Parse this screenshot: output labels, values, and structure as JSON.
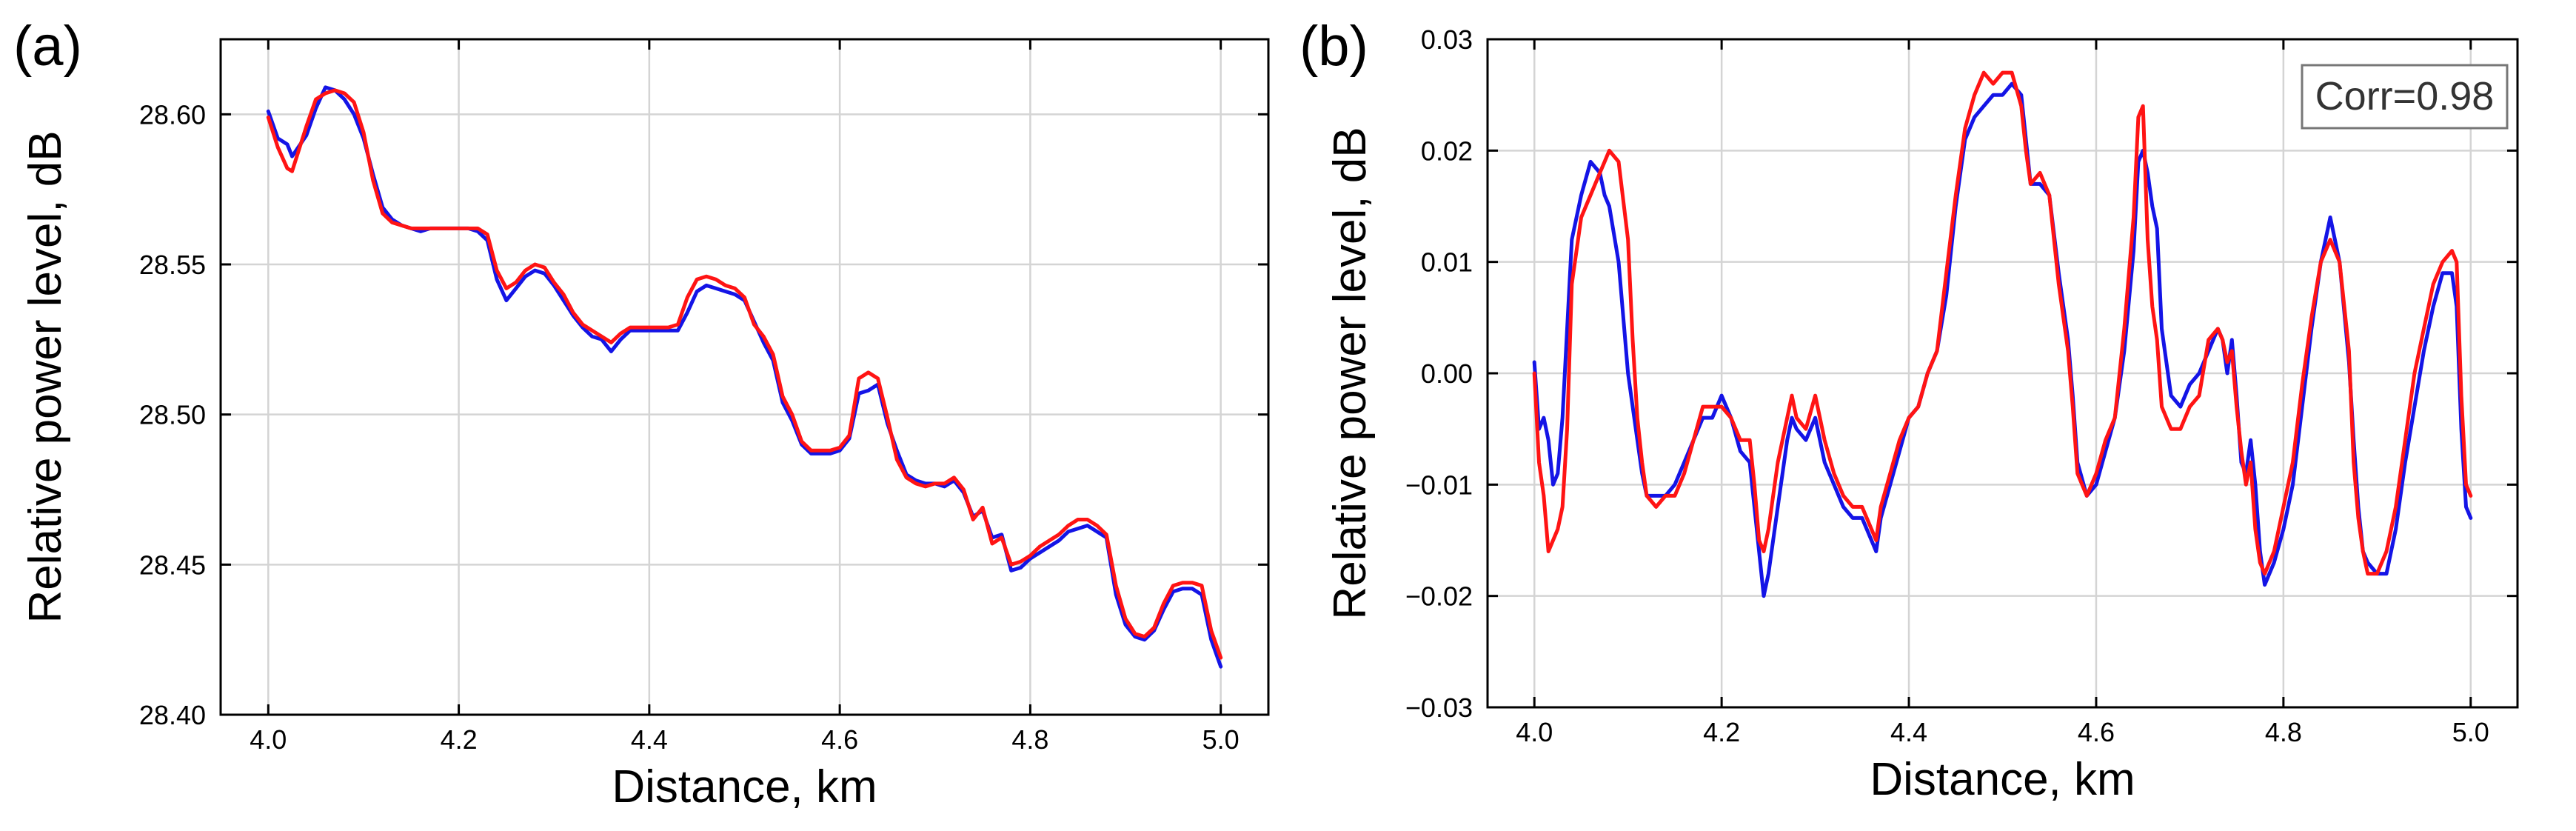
{
  "chart_data": [
    {
      "type": "line",
      "panel_label": "(a)",
      "title": "",
      "xlabel": "Distance, km",
      "ylabel": "Relative power level, dB",
      "xlim": [
        3.95,
        5.05
      ],
      "ylim": [
        28.4,
        28.625
      ],
      "xticks": [
        4.0,
        4.2,
        4.4,
        4.6,
        4.8,
        5.0
      ],
      "xtick_labels": [
        "4.0",
        "4.2",
        "4.4",
        "4.6",
        "4.8",
        "5.0"
      ],
      "yticks": [
        28.4,
        28.45,
        28.5,
        28.55,
        28.6
      ],
      "ytick_labels": [
        "28.40",
        "28.45",
        "28.50",
        "28.55",
        "28.60"
      ],
      "grid": true,
      "annotation": "",
      "series": [
        {
          "name": "blue",
          "color": "#1414e6",
          "x": [
            4.0,
            4.01,
            4.02,
            4.025,
            4.04,
            4.05,
            4.06,
            4.07,
            4.08,
            4.09,
            4.1,
            4.11,
            4.12,
            4.13,
            4.14,
            4.15,
            4.16,
            4.17,
            4.18,
            4.19,
            4.2,
            4.21,
            4.22,
            4.23,
            4.24,
            4.25,
            4.26,
            4.27,
            4.28,
            4.29,
            4.3,
            4.31,
            4.32,
            4.33,
            4.34,
            4.35,
            4.36,
            4.37,
            4.38,
            4.39,
            4.4,
            4.41,
            4.42,
            4.43,
            4.44,
            4.45,
            4.46,
            4.47,
            4.48,
            4.49,
            4.5,
            4.51,
            4.52,
            4.53,
            4.54,
            4.55,
            4.56,
            4.57,
            4.58,
            4.59,
            4.6,
            4.61,
            4.62,
            4.63,
            4.64,
            4.65,
            4.66,
            4.67,
            4.68,
            4.69,
            4.7,
            4.71,
            4.72,
            4.73,
            4.74,
            4.75,
            4.76,
            4.77,
            4.78,
            4.79,
            4.8,
            4.81,
            4.82,
            4.83,
            4.84,
            4.85,
            4.86,
            4.87,
            4.88,
            4.89,
            4.9,
            4.91,
            4.92,
            4.93,
            4.94,
            4.95,
            4.96,
            4.97,
            4.98,
            4.99,
            5.0
          ],
          "y": [
            28.601,
            28.592,
            28.59,
            28.586,
            28.593,
            28.602,
            28.609,
            28.608,
            28.605,
            28.6,
            28.592,
            28.58,
            28.569,
            28.565,
            28.563,
            28.562,
            28.561,
            28.562,
            28.562,
            28.562,
            28.562,
            28.562,
            28.561,
            28.558,
            28.545,
            28.538,
            28.542,
            28.546,
            28.548,
            28.547,
            28.543,
            28.538,
            28.533,
            28.529,
            28.526,
            28.525,
            28.521,
            28.525,
            28.528,
            28.528,
            28.528,
            28.528,
            28.528,
            28.528,
            28.534,
            28.541,
            28.543,
            28.542,
            28.541,
            28.54,
            28.538,
            28.531,
            28.524,
            28.518,
            28.504,
            28.498,
            28.49,
            28.487,
            28.487,
            28.487,
            28.488,
            28.492,
            28.507,
            28.508,
            28.51,
            28.497,
            28.488,
            28.48,
            28.478,
            28.477,
            28.477,
            28.476,
            28.478,
            28.474,
            28.466,
            28.468,
            28.459,
            28.46,
            28.448,
            28.449,
            28.452,
            28.454,
            28.456,
            28.458,
            28.461,
            28.462,
            28.463,
            28.461,
            28.459,
            28.44,
            28.43,
            28.426,
            28.425,
            28.428,
            28.435,
            28.441,
            28.442,
            28.442,
            28.44,
            28.425,
            28.416
          ]
        },
        {
          "name": "red",
          "color": "#ff1414",
          "x": [
            4.0,
            4.01,
            4.02,
            4.025,
            4.04,
            4.05,
            4.06,
            4.07,
            4.08,
            4.09,
            4.1,
            4.11,
            4.12,
            4.13,
            4.14,
            4.15,
            4.16,
            4.17,
            4.18,
            4.19,
            4.2,
            4.21,
            4.22,
            4.23,
            4.24,
            4.25,
            4.26,
            4.27,
            4.28,
            4.29,
            4.3,
            4.31,
            4.32,
            4.33,
            4.34,
            4.35,
            4.36,
            4.37,
            4.38,
            4.39,
            4.4,
            4.41,
            4.42,
            4.43,
            4.44,
            4.45,
            4.46,
            4.47,
            4.48,
            4.49,
            4.5,
            4.51,
            4.52,
            4.53,
            4.54,
            4.55,
            4.56,
            4.57,
            4.58,
            4.59,
            4.6,
            4.61,
            4.62,
            4.63,
            4.64,
            4.65,
            4.66,
            4.67,
            4.68,
            4.69,
            4.7,
            4.71,
            4.72,
            4.73,
            4.74,
            4.75,
            4.76,
            4.77,
            4.78,
            4.79,
            4.8,
            4.81,
            4.82,
            4.83,
            4.84,
            4.85,
            4.86,
            4.87,
            4.88,
            4.89,
            4.9,
            4.91,
            4.92,
            4.93,
            4.94,
            4.95,
            4.96,
            4.97,
            4.98,
            4.99,
            5.0
          ],
          "y": [
            28.599,
            28.589,
            28.582,
            28.581,
            28.596,
            28.605,
            28.607,
            28.608,
            28.607,
            28.604,
            28.594,
            28.578,
            28.567,
            28.564,
            28.563,
            28.562,
            28.562,
            28.562,
            28.562,
            28.562,
            28.562,
            28.562,
            28.562,
            28.56,
            28.548,
            28.542,
            28.544,
            28.548,
            28.55,
            28.549,
            28.544,
            28.54,
            28.534,
            28.53,
            28.528,
            28.526,
            28.524,
            28.527,
            28.529,
            28.529,
            28.529,
            28.529,
            28.529,
            28.53,
            28.539,
            28.545,
            28.546,
            28.545,
            28.543,
            28.542,
            28.539,
            28.53,
            28.526,
            28.52,
            28.506,
            28.5,
            28.491,
            28.488,
            28.488,
            28.488,
            28.489,
            28.493,
            28.512,
            28.514,
            28.512,
            28.499,
            28.485,
            28.479,
            28.477,
            28.476,
            28.477,
            28.477,
            28.479,
            28.475,
            28.465,
            28.469,
            28.457,
            28.459,
            28.45,
            28.451,
            28.453,
            28.456,
            28.458,
            28.46,
            28.463,
            28.465,
            28.465,
            28.463,
            28.46,
            28.443,
            28.432,
            28.427,
            28.426,
            28.429,
            28.437,
            28.443,
            28.444,
            28.444,
            28.443,
            28.428,
            28.419
          ]
        }
      ]
    },
    {
      "type": "line",
      "panel_label": "(b)",
      "title": "",
      "xlabel": "Distance, km",
      "ylabel": "Relative power level, dB",
      "xlim": [
        3.95,
        5.05
      ],
      "ylim": [
        -0.03,
        0.03
      ],
      "xticks": [
        4.0,
        4.2,
        4.4,
        4.6,
        4.8,
        5.0
      ],
      "xtick_labels": [
        "4.0",
        "4.2",
        "4.4",
        "4.6",
        "4.8",
        "5.0"
      ],
      "yticks": [
        -0.03,
        -0.02,
        -0.01,
        0.0,
        0.01,
        0.02,
        0.03
      ],
      "ytick_labels": [
        "−0.03",
        "−0.02",
        "−0.01",
        "0.00",
        "0.01",
        "0.02",
        "0.03"
      ],
      "grid": true,
      "annotation": "Corr=0.98",
      "series": [
        {
          "name": "blue",
          "color": "#1414e6",
          "x": [
            4.0,
            4.005,
            4.01,
            4.015,
            4.02,
            4.025,
            4.03,
            4.035,
            4.04,
            4.05,
            4.06,
            4.07,
            4.075,
            4.08,
            4.09,
            4.1,
            4.105,
            4.11,
            4.115,
            4.12,
            4.13,
            4.14,
            4.15,
            4.16,
            4.17,
            4.18,
            4.19,
            4.2,
            4.21,
            4.22,
            4.23,
            4.235,
            4.24,
            4.245,
            4.25,
            4.26,
            4.27,
            4.275,
            4.28,
            4.29,
            4.3,
            4.31,
            4.32,
            4.33,
            4.34,
            4.35,
            4.36,
            4.365,
            4.37,
            4.38,
            4.39,
            4.4,
            4.41,
            4.42,
            4.43,
            4.44,
            4.45,
            4.46,
            4.47,
            4.48,
            4.49,
            4.5,
            4.51,
            4.52,
            4.525,
            4.53,
            4.54,
            4.55,
            4.56,
            4.57,
            4.575,
            4.58,
            4.59,
            4.6,
            4.61,
            4.62,
            4.63,
            4.64,
            4.645,
            4.65,
            4.655,
            4.66,
            4.665,
            4.67,
            4.68,
            4.69,
            4.7,
            4.71,
            4.72,
            4.73,
            4.735,
            4.74,
            4.745,
            4.75,
            4.755,
            4.76,
            4.765,
            4.77,
            4.775,
            4.78,
            4.79,
            4.8,
            4.81,
            4.82,
            4.83,
            4.84,
            4.85,
            4.86,
            4.87,
            4.875,
            4.88,
            4.885,
            4.89,
            4.9,
            4.91,
            4.92,
            4.93,
            4.94,
            4.95,
            4.96,
            4.97,
            4.98,
            4.985,
            4.99,
            4.995,
            5.0
          ],
          "y": [
            0.001,
            -0.005,
            -0.004,
            -0.006,
            -0.01,
            -0.009,
            -0.004,
            0.004,
            0.012,
            0.016,
            0.019,
            0.018,
            0.016,
            0.015,
            0.01,
            0.0,
            -0.003,
            -0.006,
            -0.009,
            -0.011,
            -0.011,
            -0.011,
            -0.01,
            -0.008,
            -0.006,
            -0.004,
            -0.004,
            -0.002,
            -0.004,
            -0.007,
            -0.008,
            -0.012,
            -0.016,
            -0.02,
            -0.018,
            -0.012,
            -0.006,
            -0.004,
            -0.005,
            -0.006,
            -0.004,
            -0.008,
            -0.01,
            -0.012,
            -0.013,
            -0.013,
            -0.015,
            -0.016,
            -0.013,
            -0.01,
            -0.007,
            -0.004,
            -0.003,
            0.0,
            0.002,
            0.007,
            0.015,
            0.021,
            0.023,
            0.024,
            0.025,
            0.025,
            0.026,
            0.025,
            0.021,
            0.017,
            0.017,
            0.016,
            0.009,
            0.003,
            -0.002,
            -0.008,
            -0.011,
            -0.01,
            -0.007,
            -0.004,
            0.002,
            0.011,
            0.019,
            0.02,
            0.018,
            0.015,
            0.013,
            0.004,
            -0.002,
            -0.003,
            -0.001,
            0.0,
            0.002,
            0.004,
            0.003,
            0.0,
            0.003,
            -0.002,
            -0.008,
            -0.009,
            -0.006,
            -0.01,
            -0.016,
            -0.019,
            -0.017,
            -0.014,
            -0.01,
            -0.003,
            0.004,
            0.01,
            0.014,
            0.01,
            0.001,
            -0.006,
            -0.012,
            -0.016,
            -0.017,
            -0.018,
            -0.018,
            -0.014,
            -0.008,
            -0.003,
            0.002,
            0.006,
            0.009,
            0.009,
            0.006,
            -0.005,
            -0.012,
            -0.013
          ]
        },
        {
          "name": "red",
          "color": "#ff1414",
          "x": [
            4.0,
            4.005,
            4.01,
            4.015,
            4.02,
            4.025,
            4.03,
            4.035,
            4.04,
            4.05,
            4.06,
            4.07,
            4.075,
            4.08,
            4.09,
            4.1,
            4.105,
            4.11,
            4.115,
            4.12,
            4.13,
            4.14,
            4.15,
            4.16,
            4.17,
            4.18,
            4.19,
            4.2,
            4.21,
            4.22,
            4.23,
            4.235,
            4.24,
            4.245,
            4.25,
            4.26,
            4.27,
            4.275,
            4.28,
            4.29,
            4.3,
            4.31,
            4.32,
            4.33,
            4.34,
            4.35,
            4.36,
            4.365,
            4.37,
            4.38,
            4.39,
            4.4,
            4.41,
            4.42,
            4.43,
            4.44,
            4.45,
            4.46,
            4.47,
            4.48,
            4.49,
            4.5,
            4.51,
            4.52,
            4.525,
            4.53,
            4.54,
            4.55,
            4.56,
            4.57,
            4.575,
            4.58,
            4.59,
            4.6,
            4.61,
            4.62,
            4.63,
            4.64,
            4.645,
            4.65,
            4.655,
            4.66,
            4.665,
            4.67,
            4.68,
            4.69,
            4.7,
            4.71,
            4.72,
            4.73,
            4.735,
            4.74,
            4.745,
            4.75,
            4.755,
            4.76,
            4.765,
            4.77,
            4.775,
            4.78,
            4.79,
            4.8,
            4.81,
            4.82,
            4.83,
            4.84,
            4.85,
            4.86,
            4.87,
            4.875,
            4.88,
            4.885,
            4.89,
            4.9,
            4.91,
            4.92,
            4.93,
            4.94,
            4.95,
            4.96,
            4.97,
            4.98,
            4.985,
            4.99,
            4.995,
            5.0
          ],
          "y": [
            0.0,
            -0.008,
            -0.011,
            -0.016,
            -0.015,
            -0.014,
            -0.012,
            -0.005,
            0.008,
            0.014,
            0.016,
            0.018,
            0.019,
            0.02,
            0.019,
            0.012,
            0.003,
            -0.004,
            -0.008,
            -0.011,
            -0.012,
            -0.011,
            -0.011,
            -0.009,
            -0.006,
            -0.003,
            -0.003,
            -0.003,
            -0.004,
            -0.006,
            -0.006,
            -0.01,
            -0.015,
            -0.016,
            -0.014,
            -0.008,
            -0.004,
            -0.002,
            -0.004,
            -0.005,
            -0.002,
            -0.006,
            -0.009,
            -0.011,
            -0.012,
            -0.012,
            -0.014,
            -0.015,
            -0.012,
            -0.009,
            -0.006,
            -0.004,
            -0.003,
            0.0,
            0.002,
            0.009,
            0.016,
            0.022,
            0.025,
            0.027,
            0.026,
            0.027,
            0.027,
            0.024,
            0.02,
            0.017,
            0.018,
            0.016,
            0.008,
            0.002,
            -0.003,
            -0.009,
            -0.011,
            -0.009,
            -0.006,
            -0.004,
            0.004,
            0.014,
            0.023,
            0.024,
            0.012,
            0.006,
            0.003,
            -0.003,
            -0.005,
            -0.005,
            -0.003,
            -0.002,
            0.003,
            0.004,
            0.003,
            0.001,
            0.002,
            -0.003,
            -0.007,
            -0.01,
            -0.008,
            -0.014,
            -0.017,
            -0.018,
            -0.016,
            -0.012,
            -0.008,
            -0.001,
            0.005,
            0.01,
            0.012,
            0.01,
            0.002,
            -0.008,
            -0.013,
            -0.016,
            -0.018,
            -0.018,
            -0.016,
            -0.012,
            -0.006,
            0.0,
            0.004,
            0.008,
            0.01,
            0.011,
            0.01,
            -0.002,
            -0.01,
            -0.011
          ]
        }
      ]
    }
  ]
}
